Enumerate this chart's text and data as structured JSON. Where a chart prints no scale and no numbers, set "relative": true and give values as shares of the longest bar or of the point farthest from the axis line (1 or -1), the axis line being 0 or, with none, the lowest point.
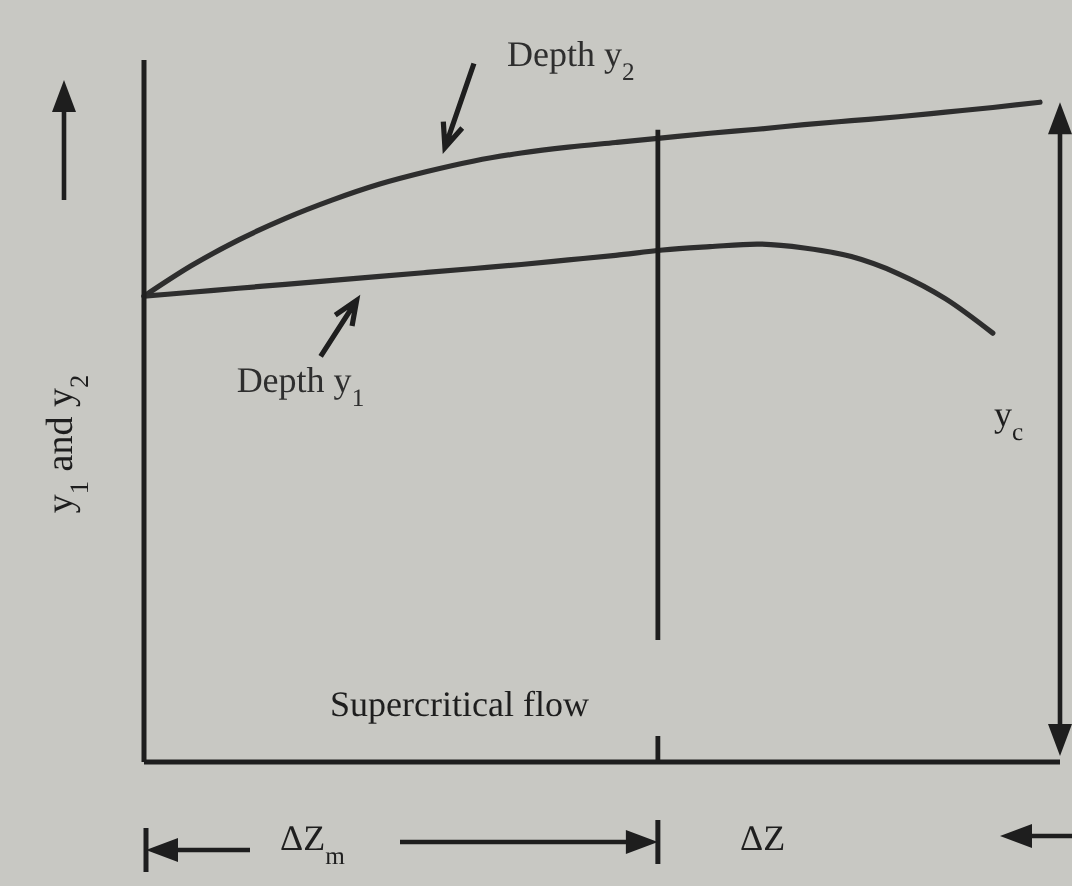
{
  "chart_data": {
    "type": "line",
    "relative": true,
    "ylabel": "y$_{1}$ and y$_{2}$",
    "line_style": "solid",
    "categories": [
      null,
      null,
      null,
      null,
      null,
      null,
      null,
      null,
      null,
      null,
      null,
      null,
      null,
      null,
      null,
      null,
      null,
      null,
      null,
      null
    ],
    "series": [
      {
        "name": "Depth y$_{2}$",
        "color": "#2e2e2e",
        "values": [
          0.706,
          0.752,
          0.791,
          0.824,
          0.852,
          0.876,
          0.895,
          0.911,
          0.923,
          0.932,
          0.939,
          0.946,
          0.953,
          0.959,
          0.966,
          0.972,
          0.978,
          0.985,
          0.992,
          1
        ]
      },
      {
        "name": "Depth y$_{1}$",
        "color": "#2e2e2e",
        "values": [
          0.706,
          0.712,
          0.718,
          0.724,
          0.73,
          0.736,
          0.742,
          0.748,
          0.754,
          0.761,
          0.768,
          0.776,
          0.781,
          0.785,
          0.779,
          0.766,
          0.74,
          0.702,
          0.65,
          null
        ]
      }
    ],
    "annotations": [
      "y$_{c}$",
      "Supercritical flow",
      "ΔZ$_{m}$",
      "ΔZ"
    ]
  }
}
